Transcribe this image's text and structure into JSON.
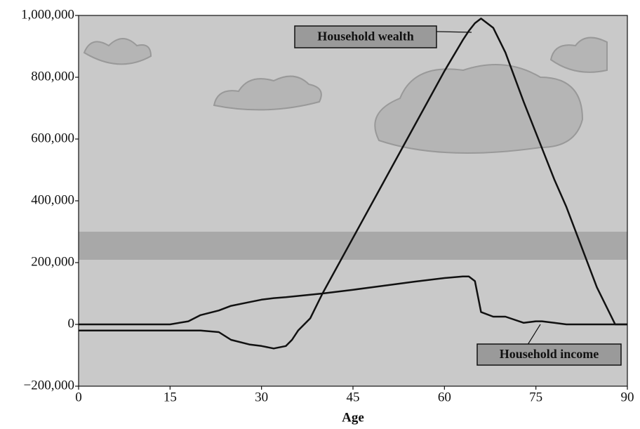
{
  "chart_data": {
    "type": "line",
    "xlabel": "Age",
    "x": [
      0,
      5,
      10,
      15,
      18,
      20,
      23,
      25,
      28,
      30,
      32,
      34,
      35,
      36,
      38,
      40,
      45,
      50,
      55,
      60,
      63,
      64,
      65,
      66,
      68,
      70,
      73,
      75,
      76,
      78,
      80,
      85,
      88,
      90
    ],
    "series": [
      {
        "name": "Household wealth",
        "color": "#111111",
        "values": [
          -20000,
          -20000,
          -20000,
          -20000,
          -20000,
          -20000,
          -25000,
          -50000,
          -65000,
          -70000,
          -78000,
          -70000,
          -50000,
          -20000,
          20000,
          100000,
          280000,
          460000,
          640000,
          820000,
          920000,
          950000,
          975000,
          990000,
          960000,
          880000,
          720000,
          620000,
          570000,
          470000,
          380000,
          120000,
          0,
          0
        ]
      },
      {
        "name": "Household income",
        "color": "#111111",
        "values": [
          0,
          0,
          0,
          0,
          10000,
          30000,
          45000,
          60000,
          72000,
          80000,
          85000,
          88000,
          90000,
          92000,
          96000,
          100000,
          112000,
          125000,
          138000,
          150000,
          155000,
          155000,
          140000,
          40000,
          25000,
          25000,
          5000,
          10000,
          10000,
          5000,
          0,
          0,
          0,
          0
        ]
      }
    ],
    "xlim": [
      0,
      90
    ],
    "xticks": [
      0,
      15,
      30,
      45,
      60,
      75,
      90
    ],
    "ylim": [
      -200000,
      1000000
    ],
    "yticks": [
      {
        "value": -200000,
        "label": "−200,000"
      },
      0,
      {
        "value": 200000,
        "label": "200,000"
      },
      {
        "value": 400000,
        "label": "400,000"
      },
      {
        "value": 600000,
        "label": "600,000"
      },
      {
        "value": 800000,
        "label": "800,000"
      },
      {
        "value": 1000000,
        "label": "1,000,000"
      }
    ],
    "background": "#c9c9c9"
  }
}
